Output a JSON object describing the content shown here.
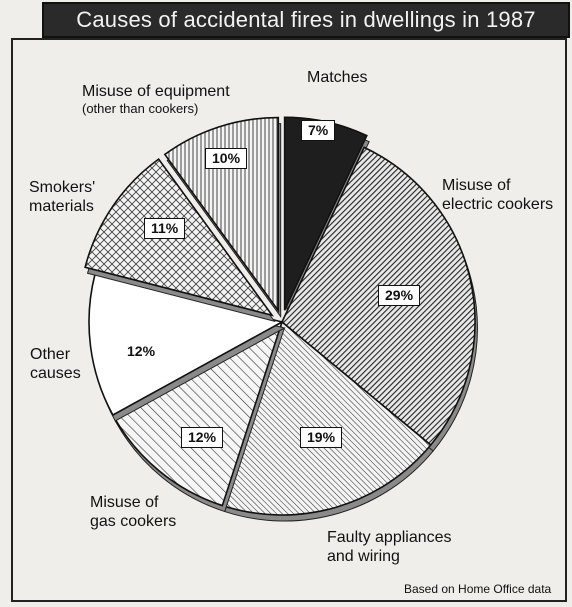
{
  "chart_data": {
    "type": "pie",
    "title": "Causes of accidental fires in dwellings in 1987",
    "slices": [
      {
        "label": "Matches",
        "value": 7,
        "display": "7%",
        "color": "#222222",
        "pattern": "solid-dark",
        "exploded": true
      },
      {
        "label": "Misuse of electric cookers",
        "label_lines": [
          "Misuse of",
          "electric cookers"
        ],
        "value": 29,
        "display": "29%",
        "color": "#555555",
        "pattern": "dense-diagonal",
        "exploded": false
      },
      {
        "label": "Faulty appliances and wiring",
        "label_lines": [
          "Faulty appliances",
          "and wiring"
        ],
        "value": 19,
        "display": "19%",
        "color": "#999999",
        "pattern": "fine-diagonal",
        "exploded": false
      },
      {
        "label": "Misuse of gas cookers",
        "label_lines": [
          "Misuse of",
          "gas cookers"
        ],
        "value": 12,
        "display": "12%",
        "color": "#bbbbbb",
        "pattern": "wide-diagonal",
        "exploded": false
      },
      {
        "label": "Other causes",
        "label_lines": [
          "Other",
          "causes"
        ],
        "value": 12,
        "display": "12%",
        "color": "#ffffff",
        "pattern": "none",
        "exploded": false
      },
      {
        "label": "Smokers' materials",
        "label_lines": [
          "Smokers'",
          "materials"
        ],
        "value": 11,
        "display": "11%",
        "color": "#cccccc",
        "pattern": "crosshatch",
        "exploded": true
      },
      {
        "label": "Misuse of equipment (other than cookers)",
        "label_lines": [
          "Misuse of equipment",
          "(other than cookers)"
        ],
        "value": 10,
        "display": "10%",
        "color": "#aaaaaa",
        "pattern": "vertical-lines",
        "exploded": true
      }
    ],
    "legend": "none",
    "source_note": "Based on Home Office data"
  }
}
